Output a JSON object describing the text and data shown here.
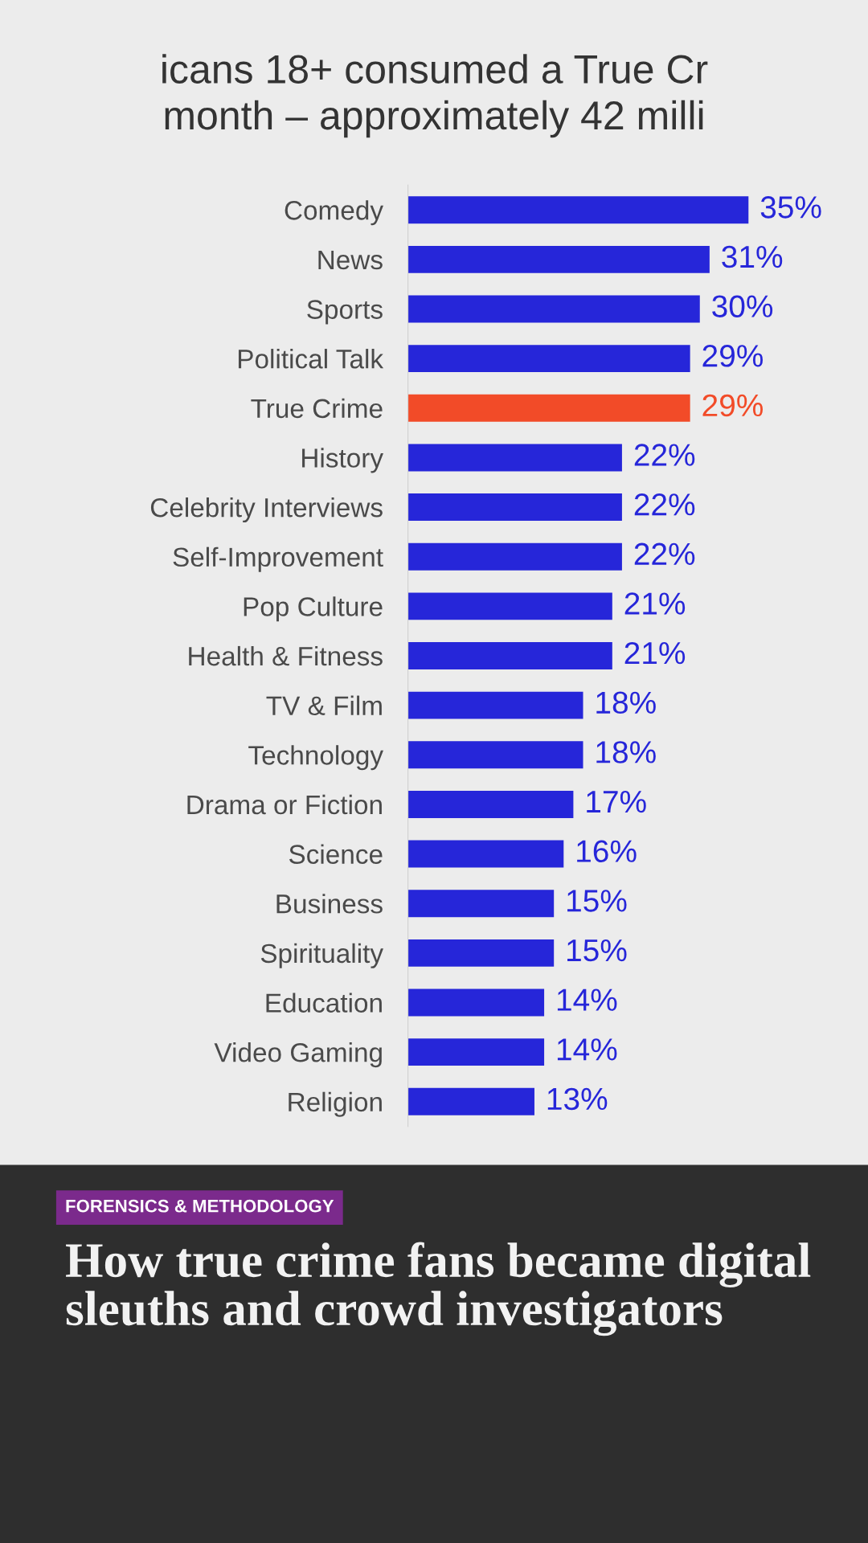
{
  "chart_data": {
    "type": "bar",
    "orientation": "horizontal",
    "title": "icans 18+ consumed a True Cr\nmonth – approximately 42 milli",
    "categories": [
      "Comedy",
      "News",
      "Sports",
      "Political Talk",
      "True Crime",
      "History",
      "Celebrity Interviews",
      "Self-Improvement",
      "Pop Culture",
      "Health & Fitness",
      "TV & Film",
      "Technology",
      "Drama or Fiction",
      "Science",
      "Business",
      "Spirituality",
      "Education",
      "Video Gaming",
      "Religion"
    ],
    "values": [
      35,
      31,
      30,
      29,
      29,
      22,
      22,
      22,
      21,
      21,
      18,
      18,
      17,
      16,
      15,
      15,
      14,
      14,
      13
    ],
    "value_labels": [
      "35%",
      "31%",
      "30%",
      "29%",
      "29%",
      "22%",
      "22%",
      "22%",
      "21%",
      "21%",
      "18%",
      "18%",
      "17%",
      "16%",
      "15%",
      "15%",
      "14%",
      "14%",
      "13%"
    ],
    "colors": [
      "#2626d9",
      "#2626d9",
      "#2626d9",
      "#2626d9",
      "#f24b28",
      "#2626d9",
      "#2626d9",
      "#2626d9",
      "#2626d9",
      "#2626d9",
      "#2626d9",
      "#2626d9",
      "#2626d9",
      "#2626d9",
      "#2626d9",
      "#2626d9",
      "#2626d9",
      "#2626d9",
      "#2626d9"
    ],
    "annotations": [
      "FORENSICS & METHODOLOGY",
      "How true crime fans became digital sleuths and crowd investigators"
    ]
  }
}
